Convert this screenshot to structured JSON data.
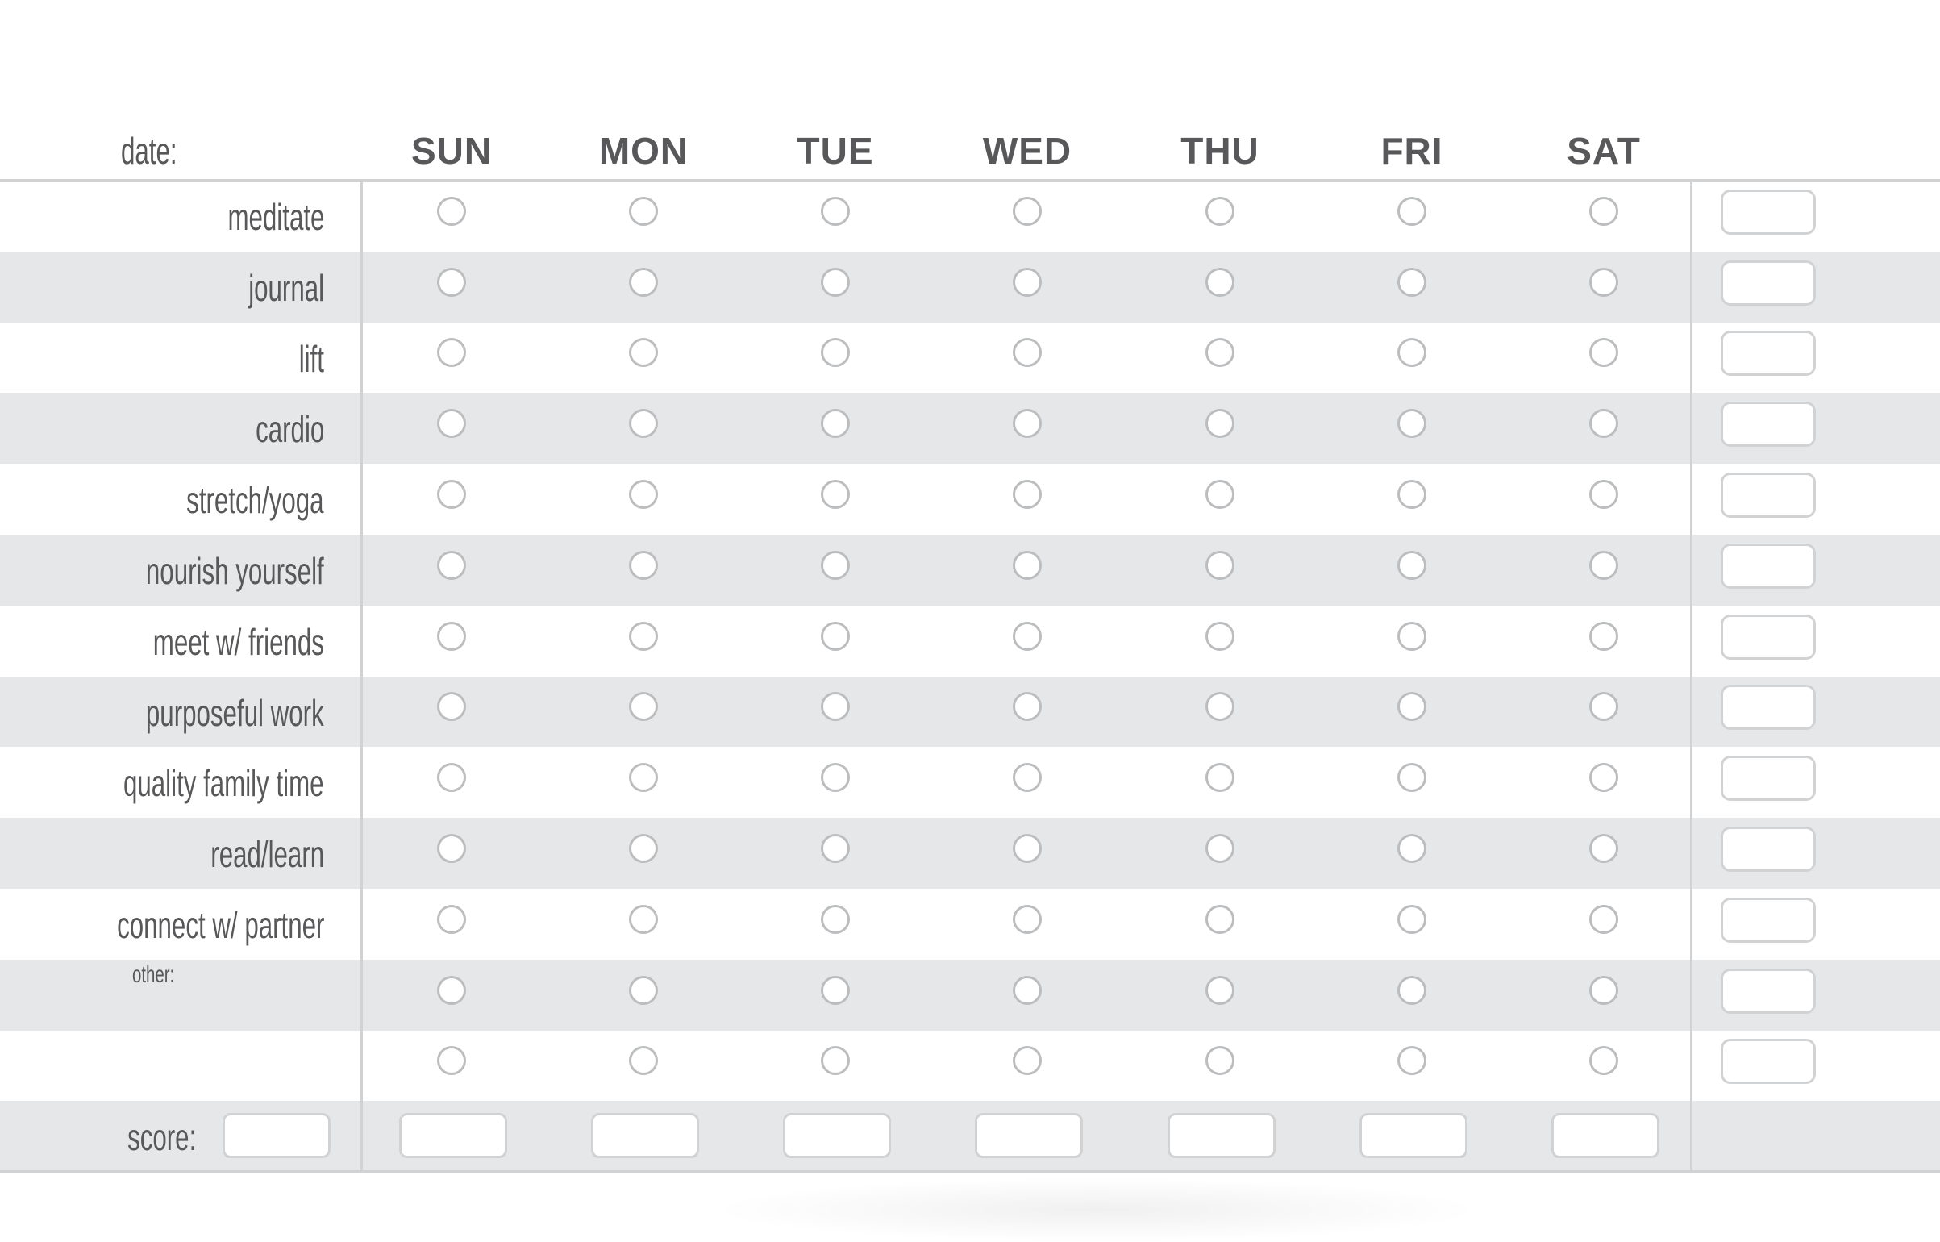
{
  "header": {
    "date_label": "date:",
    "days": [
      "SUN",
      "MON",
      "TUE",
      "WED",
      "THU",
      "FRI",
      "SAT"
    ]
  },
  "rows": [
    {
      "label": "meditate",
      "checked": [
        false,
        false,
        false,
        false,
        false,
        false,
        false
      ],
      "total": ""
    },
    {
      "label": "journal",
      "checked": [
        false,
        false,
        false,
        false,
        false,
        false,
        false
      ],
      "total": ""
    },
    {
      "label": "lift",
      "checked": [
        false,
        false,
        false,
        false,
        false,
        false,
        false
      ],
      "total": ""
    },
    {
      "label": "cardio",
      "checked": [
        false,
        false,
        false,
        false,
        false,
        false,
        false
      ],
      "total": ""
    },
    {
      "label": "stretch/yoga",
      "checked": [
        false,
        false,
        false,
        false,
        false,
        false,
        false
      ],
      "total": ""
    },
    {
      "label": "nourish yourself",
      "checked": [
        false,
        false,
        false,
        false,
        false,
        false,
        false
      ],
      "total": ""
    },
    {
      "label": "meet w/ friends",
      "checked": [
        false,
        false,
        false,
        false,
        false,
        false,
        false
      ],
      "total": ""
    },
    {
      "label": "purposeful work",
      "checked": [
        false,
        false,
        false,
        false,
        false,
        false,
        false
      ],
      "total": ""
    },
    {
      "label": "quality family time",
      "checked": [
        false,
        false,
        false,
        false,
        false,
        false,
        false
      ],
      "total": ""
    },
    {
      "label": "read/learn",
      "checked": [
        false,
        false,
        false,
        false,
        false,
        false,
        false
      ],
      "total": ""
    },
    {
      "label": "connect w/ partner",
      "checked": [
        false,
        false,
        false,
        false,
        false,
        false,
        false
      ],
      "total": ""
    },
    {
      "label": "",
      "checked": [
        false,
        false,
        false,
        false,
        false,
        false,
        false
      ],
      "total": ""
    },
    {
      "label": "",
      "checked": [
        false,
        false,
        false,
        false,
        false,
        false,
        false
      ],
      "total": ""
    }
  ],
  "other_label": "other:",
  "score": {
    "label": "score:",
    "total": "",
    "days": [
      "",
      "",
      "",
      "",
      "",
      "",
      ""
    ]
  },
  "colors": {
    "text": "#58585a",
    "row_stripe": "#e6e7e8",
    "lines": "#d1d2d4",
    "circle": "#bcbdbf"
  }
}
